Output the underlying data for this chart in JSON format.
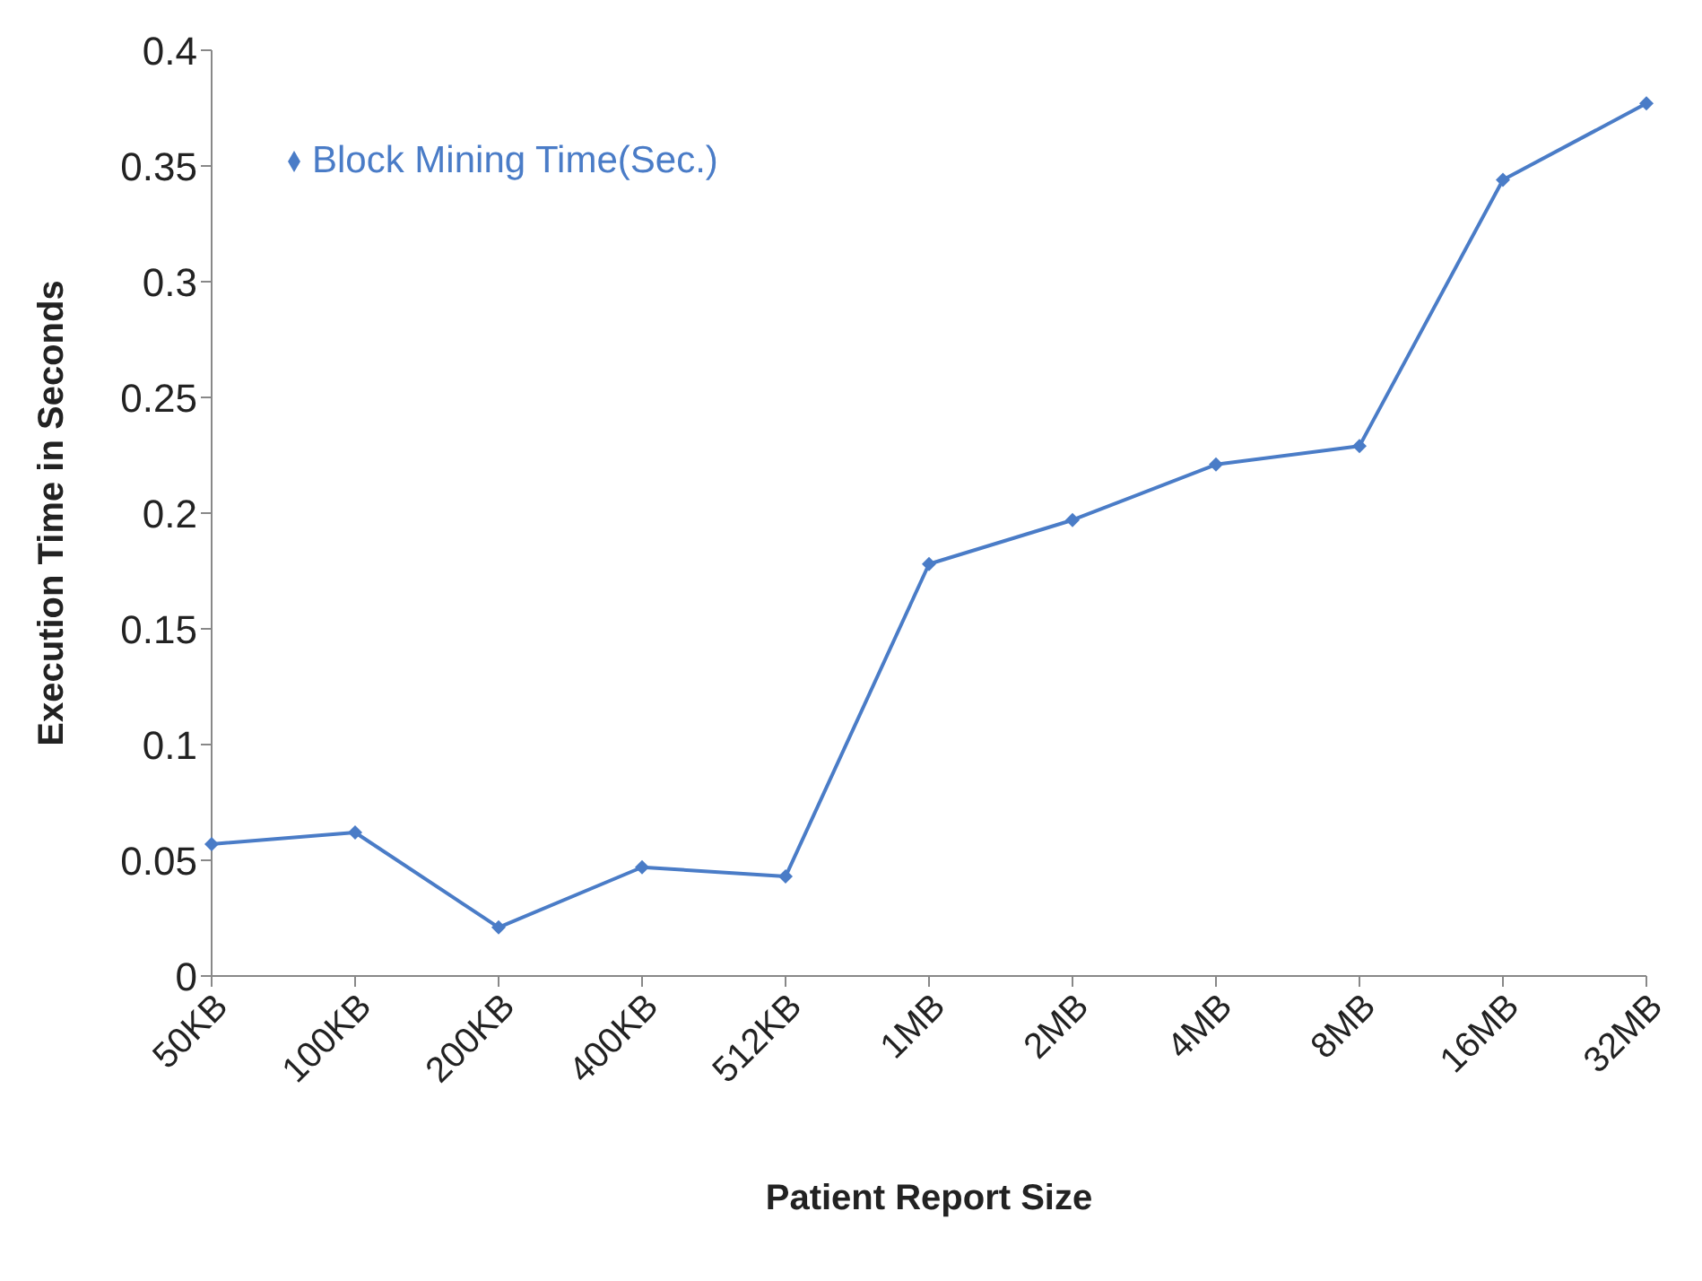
{
  "chart_data": {
    "type": "line",
    "xlabel": "Patient Report Size",
    "ylabel": "Execution Time in Seconds",
    "categories": [
      "50KB",
      "100KB",
      "200KB",
      "400KB",
      "512KB",
      "1MB",
      "2MB",
      "4MB",
      "8MB",
      "16MB",
      "32MB"
    ],
    "series": [
      {
        "name": "Block Mining Time(Sec.)",
        "color": "#4a7cc7",
        "values": [
          0.057,
          0.062,
          0.021,
          0.047,
          0.043,
          0.178,
          0.197,
          0.221,
          0.229,
          0.344,
          0.377
        ]
      }
    ],
    "ylim": [
      0,
      0.4
    ],
    "yticks": [
      0,
      0.05,
      0.1,
      0.15,
      0.2,
      0.25,
      0.3,
      0.35,
      0.4
    ],
    "grid": false,
    "legend": "top left",
    "marker": "diamond",
    "line_style": "solid"
  }
}
